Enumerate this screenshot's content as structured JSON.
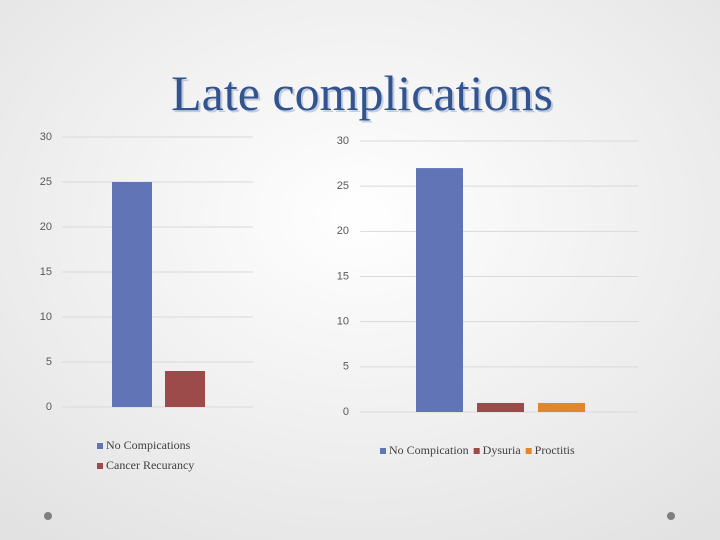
{
  "title": "Late complications",
  "chart_data": [
    {
      "type": "bar",
      "categories": [
        null
      ],
      "series": [
        {
          "name": "No Compications",
          "color": "#6074b6",
          "values": [
            25
          ]
        },
        {
          "name": "Cancer Recurancy",
          "color": "#9c4a4a",
          "values": [
            4
          ]
        }
      ],
      "ylim": [
        0,
        30
      ],
      "yticks": [
        0,
        5,
        10,
        15,
        20,
        25,
        30
      ],
      "grid": true,
      "legend": "bottom"
    },
    {
      "type": "bar",
      "categories": [
        null
      ],
      "series": [
        {
          "name": "No Compication",
          "color": "#6074b6",
          "values": [
            27
          ]
        },
        {
          "name": "Dysuria",
          "color": "#9c4a4a",
          "values": [
            1
          ]
        },
        {
          "name": "Proctitis",
          "color": "#e0862c",
          "values": [
            1
          ]
        }
      ],
      "ylim": [
        0,
        30
      ],
      "yticks": [
        0,
        5,
        10,
        15,
        20,
        25,
        30
      ],
      "grid": true,
      "legend": "bottom"
    }
  ]
}
